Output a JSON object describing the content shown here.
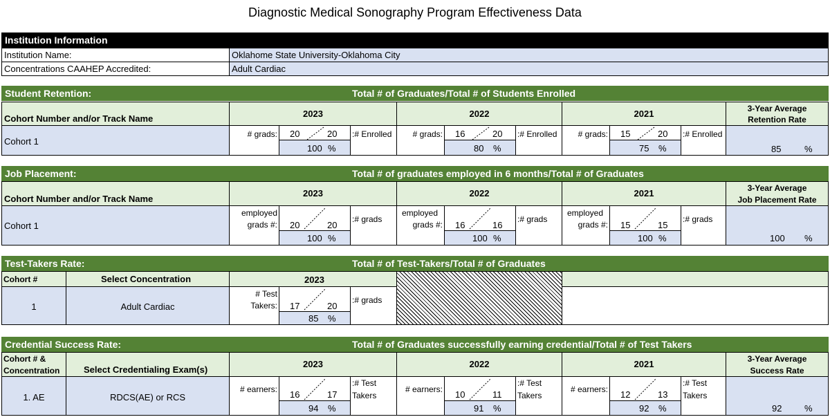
{
  "title": "Diagnostic Medical Sonography Program Effectiveness Data",
  "institution": {
    "header": "Institution Information",
    "name_label": "Institution Name:",
    "name_value": "Oklahome State University-Oklahoma City",
    "conc_label": "Concentrations CAAHEP Accredited:",
    "conc_value": "Adult Cardiac"
  },
  "retention": {
    "section": "Student Retention:",
    "formula": "Total # of Graduates/Total # of Students Enrolled",
    "cohort_header": "Cohort Number and/or Track Name",
    "avg_header_1": "3-Year Average",
    "avg_header_2": "Retention Rate",
    "cohort": "Cohort 1",
    "num_label": "# grads:",
    "den_label": ":# Enrolled",
    "years": [
      {
        "year": "2023",
        "num": "20",
        "den": "20",
        "pct": "100",
        "unit": "%"
      },
      {
        "year": "2022",
        "num": "16",
        "den": "20",
        "pct": "80",
        "unit": "%"
      },
      {
        "year": "2021",
        "num": "15",
        "den": "20",
        "pct": "75",
        "unit": "%"
      }
    ],
    "avg": "85",
    "avg_unit": "%"
  },
  "placement": {
    "section": "Job Placement:",
    "formula": "Total # of graduates employed in 6 months/Total # of Graduates",
    "cohort_header": "Cohort Number and/or Track Name",
    "avg_header_1": "3-Year Average",
    "avg_header_2": "Job Placement Rate",
    "cohort": "Cohort 1",
    "num_label_1": "employed",
    "num_label_2": "grads #:",
    "den_label": ":# grads",
    "years": [
      {
        "year": "2023",
        "num": "20",
        "den": "20",
        "pct": "100",
        "unit": "%"
      },
      {
        "year": "2022",
        "num": "16",
        "den": "16",
        "pct": "100",
        "unit": "%"
      },
      {
        "year": "2021",
        "num": "15",
        "den": "15",
        "pct": "100",
        "unit": "%"
      }
    ],
    "avg": "100",
    "avg_unit": "%"
  },
  "testtakers": {
    "section": "Test-Takers Rate:",
    "formula": "Total # of Test-Takers/Total # of Graduates",
    "cohort_header": "Cohort #",
    "concentration_header": "Select Concentration",
    "year": "2023",
    "cohort": "1",
    "concentration": "Adult Cardiac",
    "num_label_1": "# Test",
    "num_label_2": "Takers:",
    "num": "17",
    "den": "20",
    "den_label": ":# grads",
    "pct": "85",
    "unit": "%"
  },
  "credential": {
    "section": "Credential Success Rate:",
    "formula": "Total # of Graduates successfully earning credential/Total # of Test Takers",
    "cohort_header_1": "Cohort # &",
    "cohort_header_2": "Concentration",
    "exam_header": "Select Credentialing Exam(s)",
    "avg_header_1": "3-Year Average",
    "avg_header_2": "Success Rate",
    "cohort": "1. AE",
    "exam": "RDCS(AE) or RCS",
    "num_label": "# earners:",
    "den_label_1": ":# Test",
    "den_label_2": "Takers",
    "years": [
      {
        "year": "2023",
        "num": "16",
        "den": "17",
        "pct": "94",
        "unit": "%"
      },
      {
        "year": "2022",
        "num": "10",
        "den": "11",
        "pct": "91",
        "unit": "%"
      },
      {
        "year": "2021",
        "num": "12",
        "den": "13",
        "pct": "92",
        "unit": "%"
      }
    ],
    "avg": "92",
    "avg_unit": "%"
  }
}
